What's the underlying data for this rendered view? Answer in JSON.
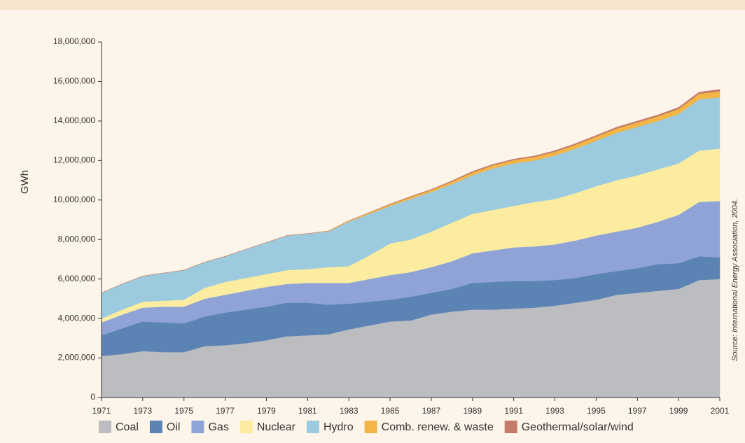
{
  "chart_data": {
    "type": "stacked_area",
    "y_label": "GWh",
    "source": "Source: International Energy Association, 2004.",
    "x": [
      1971,
      1972,
      1973,
      1974,
      1975,
      1976,
      1977,
      1978,
      1979,
      1980,
      1981,
      1982,
      1983,
      1984,
      1985,
      1986,
      1987,
      1988,
      1989,
      1990,
      1991,
      1992,
      1993,
      1994,
      1995,
      1996,
      1997,
      1998,
      1999,
      2000,
      2001
    ],
    "xlim": [
      1971,
      2001
    ],
    "xticks": [
      1971,
      1973,
      1975,
      1977,
      1979,
      1981,
      1983,
      1985,
      1987,
      1989,
      1991,
      1993,
      1995,
      1997,
      1999,
      2001
    ],
    "ylim": [
      0,
      18000000
    ],
    "yticks": [
      0,
      {
        "value": 2000000,
        "label": "2,000,000"
      },
      {
        "value": 4000000,
        "label": "4,000,000"
      },
      {
        "value": 6000000,
        "label": "6,000,000"
      },
      {
        "value": 8000000,
        "label": "8,000,000"
      },
      {
        "value": 10000000,
        "label": "10,000,000"
      },
      {
        "value": 12000000,
        "label": "12,000,000"
      },
      {
        "value": 14000000,
        "label": "14,000,000"
      },
      {
        "value": 16000000,
        "label": "16,000,000"
      },
      {
        "value": 18000000,
        "label": "18,000,000"
      }
    ],
    "series": [
      {
        "name": "Coal",
        "color": "#bcbdc0",
        "values": [
          2100000,
          2200000,
          2350000,
          2300000,
          2300000,
          2600000,
          2650000,
          2750000,
          2900000,
          3100000,
          3150000,
          3200000,
          3450000,
          3650000,
          3850000,
          3900000,
          4200000,
          4350000,
          4450000,
          4450000,
          4500000,
          4550000,
          4650000,
          4800000,
          4950000,
          5200000,
          5300000,
          5400000,
          5500000,
          5950000,
          6000000
        ]
      },
      {
        "name": "Oil",
        "color": "#5b84b5",
        "values": [
          1050000,
          1300000,
          1500000,
          1500000,
          1450000,
          1500000,
          1650000,
          1700000,
          1700000,
          1700000,
          1650000,
          1500000,
          1300000,
          1200000,
          1100000,
          1200000,
          1100000,
          1150000,
          1350000,
          1400000,
          1400000,
          1350000,
          1300000,
          1250000,
          1300000,
          1200000,
          1250000,
          1350000,
          1300000,
          1200000,
          1100000
        ]
      },
      {
        "name": "Gas",
        "color": "#8fa3d6",
        "values": [
          650000,
          700000,
          700000,
          800000,
          850000,
          900000,
          900000,
          950000,
          1000000,
          950000,
          1000000,
          1100000,
          1050000,
          1150000,
          1250000,
          1250000,
          1300000,
          1400000,
          1500000,
          1600000,
          1700000,
          1750000,
          1800000,
          1900000,
          1950000,
          2000000,
          2050000,
          2150000,
          2450000,
          2750000,
          2850000
        ]
      },
      {
        "name": "Nuclear",
        "color": "#fbeca0",
        "values": [
          200000,
          250000,
          300000,
          300000,
          350000,
          550000,
          650000,
          650000,
          650000,
          700000,
          700000,
          800000,
          850000,
          1200000,
          1600000,
          1650000,
          1800000,
          1950000,
          2000000,
          2050000,
          2100000,
          2250000,
          2300000,
          2400000,
          2500000,
          2600000,
          2650000,
          2650000,
          2600000,
          2600000,
          2650000
        ]
      },
      {
        "name": "Hydro",
        "color": "#9ccbe0",
        "values": [
          1300000,
          1300000,
          1300000,
          1400000,
          1500000,
          1300000,
          1300000,
          1450000,
          1600000,
          1750000,
          1800000,
          1800000,
          2250000,
          2100000,
          1900000,
          2050000,
          2000000,
          1950000,
          1950000,
          2100000,
          2150000,
          2100000,
          2200000,
          2250000,
          2300000,
          2400000,
          2450000,
          2450000,
          2500000,
          2600000,
          2600000
        ]
      },
      {
        "name": "Comb. renew. & waste",
        "color": "#f2b546",
        "values": [
          0,
          0,
          0,
          0,
          0,
          0,
          0,
          0,
          0,
          0,
          0,
          30000,
          50000,
          70000,
          80000,
          100000,
          110000,
          130000,
          150000,
          160000,
          170000,
          180000,
          190000,
          200000,
          210000,
          220000,
          230000,
          240000,
          260000,
          280000,
          300000
        ]
      },
      {
        "name": "Geothermal/solar/wind",
        "color": "#c47b6a",
        "values": [
          0,
          0,
          0,
          0,
          0,
          0,
          0,
          0,
          0,
          0,
          0,
          0,
          0,
          0,
          20000,
          30000,
          30000,
          40000,
          50000,
          50000,
          50000,
          50000,
          60000,
          60000,
          60000,
          70000,
          70000,
          70000,
          80000,
          80000,
          100000
        ]
      }
    ]
  }
}
